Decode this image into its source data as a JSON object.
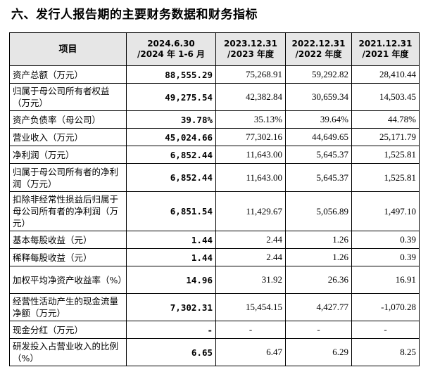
{
  "section_title": "六、发行人报告期的主要财务数据和财务指标",
  "columns": [
    "项目",
    "2024.6.30\n/2024 年 1-6 月",
    "2023.12.31\n/2023 年度",
    "2022.12.31\n/2022 年度",
    "2021.12.31\n/2021 年度"
  ],
  "rows": [
    {
      "label": "资产总额（万元）",
      "values": [
        "88,555.29",
        "75,268.91",
        "59,292.82",
        "28,410.44"
      ]
    },
    {
      "label": "归属于母公司所有者权益（万元）",
      "values": [
        "49,275.54",
        "42,382.84",
        "30,659.34",
        "14,503.45"
      ]
    },
    {
      "label": "资产负债率（母公司）",
      "values": [
        "39.78%",
        "35.13%",
        "39.64%",
        "44.78%"
      ]
    },
    {
      "label": "营业收入（万元）",
      "values": [
        "45,024.66",
        "77,302.16",
        "44,649.65",
        "25,171.79"
      ]
    },
    {
      "label": "净利润（万元）",
      "values": [
        "6,852.44",
        "11,643.00",
        "5,645.37",
        "1,525.81"
      ]
    },
    {
      "label": "归属于母公司所有者的净利润（万元）",
      "values": [
        "6,852.44",
        "11,643.00",
        "5,645.37",
        "1,525.81"
      ]
    },
    {
      "label": "扣除非经常性损益后归属于母公司所有者的净利润（万元）",
      "values": [
        "6,851.54",
        "11,429.67",
        "5,056.89",
        "1,497.10"
      ]
    },
    {
      "label": "基本每股收益（元）",
      "values": [
        "1.44",
        "2.44",
        "1.26",
        "0.39"
      ]
    },
    {
      "label": "稀释每股收益（元）",
      "values": [
        "1.44",
        "2.44",
        "1.26",
        "0.39"
      ]
    },
    {
      "label": "加权平均净资产收益率（%）",
      "values": [
        "14.96",
        "31.92",
        "26.36",
        "16.91"
      ]
    },
    {
      "label": "经营性活动产生的现金流量净额（万元）",
      "values": [
        "7,302.31",
        "15,454.15",
        "4,427.77",
        "-1,070.28"
      ]
    },
    {
      "label": "现金分红（万元）",
      "values": [
        "-",
        "-",
        "-",
        "-"
      ]
    },
    {
      "label": "研发投入占营业收入的比例（%）",
      "values": [
        "6.65",
        "6.47",
        "6.29",
        "8.25"
      ]
    }
  ]
}
